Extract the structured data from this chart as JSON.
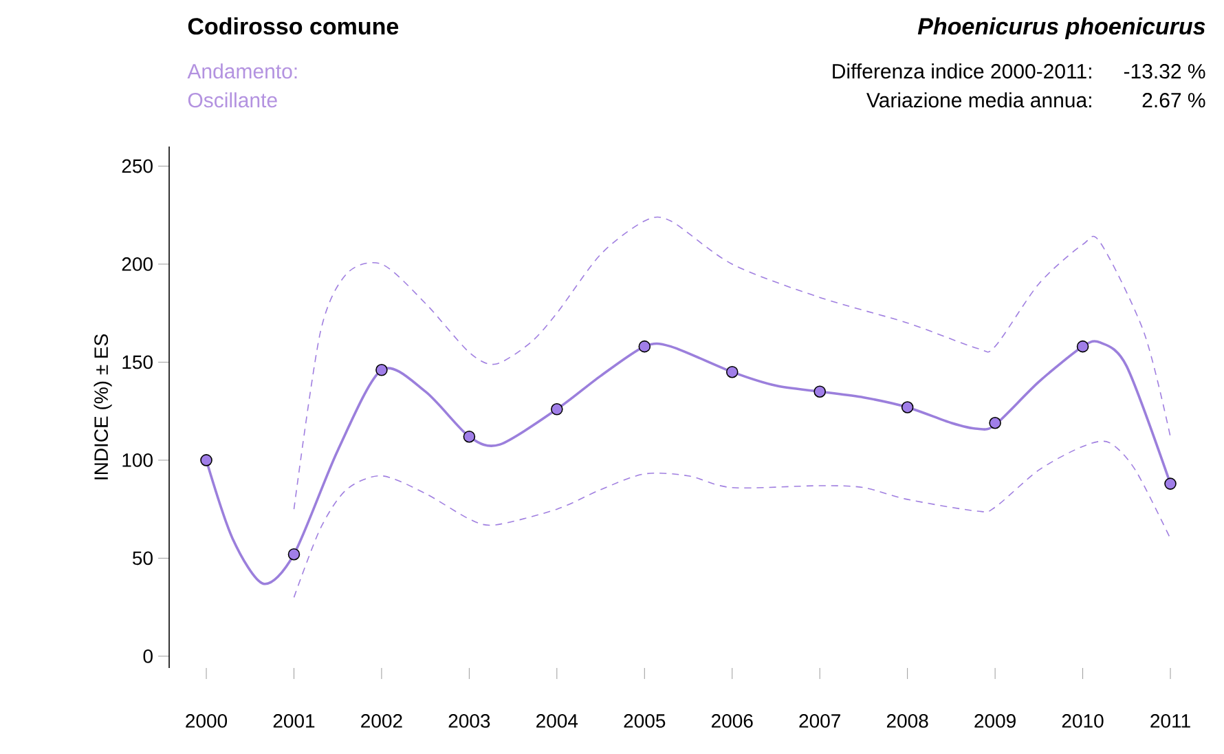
{
  "chart_data": {
    "type": "line",
    "title": "Codirosso comune",
    "subtitle": "Phoenicurus phoenicurus",
    "ylabel": "INDICE (%) ± ES",
    "annotations": [
      "Andamento:",
      "Oscillante",
      "Differenza indice 2000-2011:",
      "-13.32 %",
      "Variazione media annua:",
      "2.67 %"
    ],
    "xlim": [
      2000,
      2011
    ],
    "xticks": [
      2000,
      2001,
      2002,
      2003,
      2004,
      2005,
      2006,
      2007,
      2008,
      2009,
      2010,
      2011
    ],
    "ylim": [
      -6,
      260
    ],
    "yticks": [
      0,
      50,
      100,
      150,
      200,
      250
    ],
    "series": [
      {
        "color": "#a07fe0",
        "line_style": "dashed",
        "marker": "none",
        "x": [
          2001,
          2001.3,
          2001.6,
          2002,
          2002.5,
          2003,
          2003.3,
          2003.7,
          2004,
          2004.5,
          2005,
          2005.3,
          2006,
          2007,
          2008,
          2008.8,
          2009,
          2009.5,
          2010,
          2010.2,
          2010.7,
          2011
        ],
        "values": [
          75,
          165,
          195,
          200,
          180,
          155,
          149,
          160,
          175,
          205,
          222,
          222,
          200,
          183,
          170,
          157,
          158,
          190,
          210,
          211,
          165,
          112
        ]
      },
      {
        "color": "#a07fe0",
        "line_style": "dashed",
        "marker": "none",
        "x": [
          2001,
          2001.3,
          2001.6,
          2002,
          2002.5,
          2003,
          2003.3,
          2004,
          2004.5,
          2005,
          2005.5,
          2006,
          2007,
          2007.5,
          2008,
          2008.8,
          2009,
          2009.5,
          2010,
          2010.3,
          2010.6,
          2011
        ],
        "values": [
          30,
          65,
          85,
          92,
          83,
          70,
          67,
          75,
          85,
          93,
          92,
          86,
          87,
          86,
          80,
          74,
          76,
          95,
          107,
          109,
          95,
          60
        ]
      },
      {
        "color": "#9b7fdc",
        "line_style": "solid",
        "marker": "none",
        "x": [
          2000,
          2000.3,
          2000.65,
          2001,
          2001.5,
          2002,
          2002.5,
          2003,
          2003.35,
          2004,
          2004.5,
          2005,
          2005.3,
          2006,
          2006.5,
          2007,
          2007.5,
          2008,
          2008.5,
          2008.8,
          2009,
          2009.5,
          2010,
          2010.2,
          2010.5,
          2011
        ],
        "values": [
          100,
          60,
          37,
          52,
          105,
          146,
          135,
          112,
          108,
          126,
          143,
          158,
          158,
          145,
          138,
          135,
          132,
          127,
          119,
          116,
          118,
          140,
          158,
          160,
          148,
          88
        ]
      },
      {
        "type": "scatter",
        "color": "#a07ee8",
        "marker": "circle",
        "x": [
          2000,
          2001,
          2002,
          2003,
          2004,
          2005,
          2006,
          2007,
          2008,
          2009,
          2010,
          2011
        ],
        "values": [
          100,
          52,
          146,
          112,
          126,
          158,
          145,
          135,
          127,
          119,
          158,
          88
        ]
      }
    ]
  }
}
